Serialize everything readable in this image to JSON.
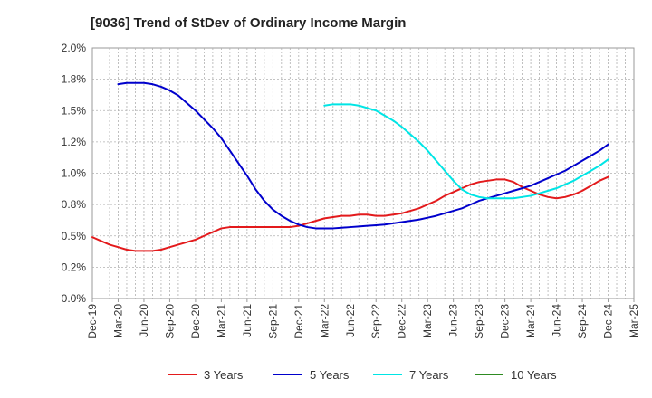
{
  "chart_data": {
    "type": "line",
    "title": "[9036]  Trend of StDev of Ordinary Income Margin",
    "xlabel": "",
    "ylabel": "",
    "x_tick_labels": [
      "Dec-19",
      "Mar-20",
      "Jun-20",
      "Sep-20",
      "Dec-20",
      "Mar-21",
      "Jun-21",
      "Sep-21",
      "Dec-21",
      "Mar-22",
      "Jun-22",
      "Sep-22",
      "Dec-22",
      "Mar-23",
      "Jun-23",
      "Sep-23",
      "Dec-23",
      "Mar-24",
      "Jun-24",
      "Sep-24",
      "Dec-24",
      "Mar-25"
    ],
    "y_tick_labels": [
      "0.0%",
      "0.2%",
      "0.5%",
      "0.8%",
      "1.0%",
      "1.2%",
      "1.5%",
      "1.8%",
      "2.0%"
    ],
    "ylim": [
      0,
      2.0
    ],
    "grid": true,
    "legend_position": "bottom",
    "series": [
      {
        "name": "3 Years",
        "color": "#e31a1c",
        "points": [
          [
            "Dec-19",
            0.49
          ],
          [
            "Jan-20",
            0.46
          ],
          [
            "Feb-20",
            0.43
          ],
          [
            "Mar-20",
            0.41
          ],
          [
            "Apr-20",
            0.39
          ],
          [
            "May-20",
            0.38
          ],
          [
            "Jun-20",
            0.38
          ],
          [
            "Jul-20",
            0.38
          ],
          [
            "Aug-20",
            0.39
          ],
          [
            "Sep-20",
            0.41
          ],
          [
            "Oct-20",
            0.43
          ],
          [
            "Nov-20",
            0.45
          ],
          [
            "Dec-20",
            0.47
          ],
          [
            "Jan-21",
            0.5
          ],
          [
            "Feb-21",
            0.53
          ],
          [
            "Mar-21",
            0.56
          ],
          [
            "Apr-21",
            0.57
          ],
          [
            "May-21",
            0.57
          ],
          [
            "Jun-21",
            0.57
          ],
          [
            "Jul-21",
            0.57
          ],
          [
            "Aug-21",
            0.57
          ],
          [
            "Sep-21",
            0.57
          ],
          [
            "Oct-21",
            0.57
          ],
          [
            "Nov-21",
            0.57
          ],
          [
            "Dec-21",
            0.58
          ],
          [
            "Jan-22",
            0.6
          ],
          [
            "Feb-22",
            0.62
          ],
          [
            "Mar-22",
            0.64
          ],
          [
            "Apr-22",
            0.65
          ],
          [
            "May-22",
            0.66
          ],
          [
            "Jun-22",
            0.66
          ],
          [
            "Jul-22",
            0.67
          ],
          [
            "Aug-22",
            0.67
          ],
          [
            "Sep-22",
            0.66
          ],
          [
            "Oct-22",
            0.66
          ],
          [
            "Nov-22",
            0.67
          ],
          [
            "Dec-22",
            0.68
          ],
          [
            "Jan-23",
            0.7
          ],
          [
            "Feb-23",
            0.72
          ],
          [
            "Mar-23",
            0.75
          ],
          [
            "Apr-23",
            0.78
          ],
          [
            "May-23",
            0.82
          ],
          [
            "Jun-23",
            0.85
          ],
          [
            "Jul-23",
            0.88
          ],
          [
            "Aug-23",
            0.91
          ],
          [
            "Sep-23",
            0.93
          ],
          [
            "Oct-23",
            0.94
          ],
          [
            "Nov-23",
            0.95
          ],
          [
            "Dec-23",
            0.95
          ],
          [
            "Jan-24",
            0.93
          ],
          [
            "Feb-24",
            0.89
          ],
          [
            "Mar-24",
            0.86
          ],
          [
            "Apr-24",
            0.83
          ],
          [
            "May-24",
            0.81
          ],
          [
            "Jun-24",
            0.8
          ],
          [
            "Jul-24",
            0.81
          ],
          [
            "Aug-24",
            0.83
          ],
          [
            "Sep-24",
            0.86
          ],
          [
            "Oct-24",
            0.9
          ],
          [
            "Nov-24",
            0.94
          ],
          [
            "Dec-24",
            0.97
          ]
        ]
      },
      {
        "name": "5 Years",
        "color": "#0000cc",
        "points": [
          [
            "Mar-20",
            1.71
          ],
          [
            "Apr-20",
            1.72
          ],
          [
            "May-20",
            1.72
          ],
          [
            "Jun-20",
            1.72
          ],
          [
            "Jul-20",
            1.71
          ],
          [
            "Aug-20",
            1.69
          ],
          [
            "Sep-20",
            1.66
          ],
          [
            "Oct-20",
            1.62
          ],
          [
            "Nov-20",
            1.56
          ],
          [
            "Dec-20",
            1.5
          ],
          [
            "Jan-21",
            1.43
          ],
          [
            "Feb-21",
            1.36
          ],
          [
            "Mar-21",
            1.28
          ],
          [
            "Apr-21",
            1.18
          ],
          [
            "May-21",
            1.08
          ],
          [
            "Jun-21",
            0.98
          ],
          [
            "Jul-21",
            0.87
          ],
          [
            "Aug-21",
            0.78
          ],
          [
            "Sep-21",
            0.71
          ],
          [
            "Oct-21",
            0.66
          ],
          [
            "Nov-21",
            0.62
          ],
          [
            "Dec-21",
            0.59
          ],
          [
            "Jan-22",
            0.57
          ],
          [
            "Feb-22",
            0.56
          ],
          [
            "Mar-22",
            0.56
          ],
          [
            "Apr-22",
            0.56
          ],
          [
            "May-22",
            0.565
          ],
          [
            "Jun-22",
            0.57
          ],
          [
            "Jul-22",
            0.575
          ],
          [
            "Aug-22",
            0.58
          ],
          [
            "Sep-22",
            0.585
          ],
          [
            "Oct-22",
            0.59
          ],
          [
            "Nov-22",
            0.6
          ],
          [
            "Dec-22",
            0.61
          ],
          [
            "Jan-23",
            0.62
          ],
          [
            "Feb-23",
            0.63
          ],
          [
            "Mar-23",
            0.645
          ],
          [
            "Apr-23",
            0.66
          ],
          [
            "May-23",
            0.68
          ],
          [
            "Jun-23",
            0.7
          ],
          [
            "Jul-23",
            0.72
          ],
          [
            "Aug-23",
            0.75
          ],
          [
            "Sep-23",
            0.78
          ],
          [
            "Oct-23",
            0.8
          ],
          [
            "Nov-23",
            0.82
          ],
          [
            "Dec-23",
            0.84
          ],
          [
            "Jan-24",
            0.86
          ],
          [
            "Feb-24",
            0.88
          ],
          [
            "Mar-24",
            0.9
          ],
          [
            "Apr-24",
            0.93
          ],
          [
            "May-24",
            0.96
          ],
          [
            "Jun-24",
            0.99
          ],
          [
            "Jul-24",
            1.02
          ],
          [
            "Aug-24",
            1.06
          ],
          [
            "Sep-24",
            1.1
          ],
          [
            "Oct-24",
            1.14
          ],
          [
            "Nov-24",
            1.18
          ],
          [
            "Dec-24",
            1.23
          ]
        ]
      },
      {
        "name": "7 Years",
        "color": "#00e5e5",
        "points": [
          [
            "Mar-22",
            1.54
          ],
          [
            "Apr-22",
            1.55
          ],
          [
            "May-22",
            1.55
          ],
          [
            "Jun-22",
            1.55
          ],
          [
            "Jul-22",
            1.54
          ],
          [
            "Aug-22",
            1.52
          ],
          [
            "Sep-22",
            1.5
          ],
          [
            "Oct-22",
            1.46
          ],
          [
            "Nov-22",
            1.42
          ],
          [
            "Dec-22",
            1.37
          ],
          [
            "Jan-23",
            1.31
          ],
          [
            "Feb-23",
            1.25
          ],
          [
            "Mar-23",
            1.18
          ],
          [
            "Apr-23",
            1.1
          ],
          [
            "May-23",
            1.02
          ],
          [
            "Jun-23",
            0.94
          ],
          [
            "Jul-23",
            0.87
          ],
          [
            "Aug-23",
            0.83
          ],
          [
            "Sep-23",
            0.81
          ],
          [
            "Oct-23",
            0.8
          ],
          [
            "Nov-23",
            0.8
          ],
          [
            "Dec-23",
            0.8
          ],
          [
            "Jan-24",
            0.8
          ],
          [
            "Feb-24",
            0.81
          ],
          [
            "Mar-24",
            0.82
          ],
          [
            "Apr-24",
            0.84
          ],
          [
            "May-24",
            0.86
          ],
          [
            "Jun-24",
            0.88
          ],
          [
            "Jul-24",
            0.91
          ],
          [
            "Aug-24",
            0.94
          ],
          [
            "Sep-24",
            0.98
          ],
          [
            "Oct-24",
            1.02
          ],
          [
            "Nov-24",
            1.06
          ],
          [
            "Dec-24",
            1.11
          ]
        ]
      },
      {
        "name": "10 Years",
        "color": "#2e8b22",
        "points": []
      }
    ]
  }
}
